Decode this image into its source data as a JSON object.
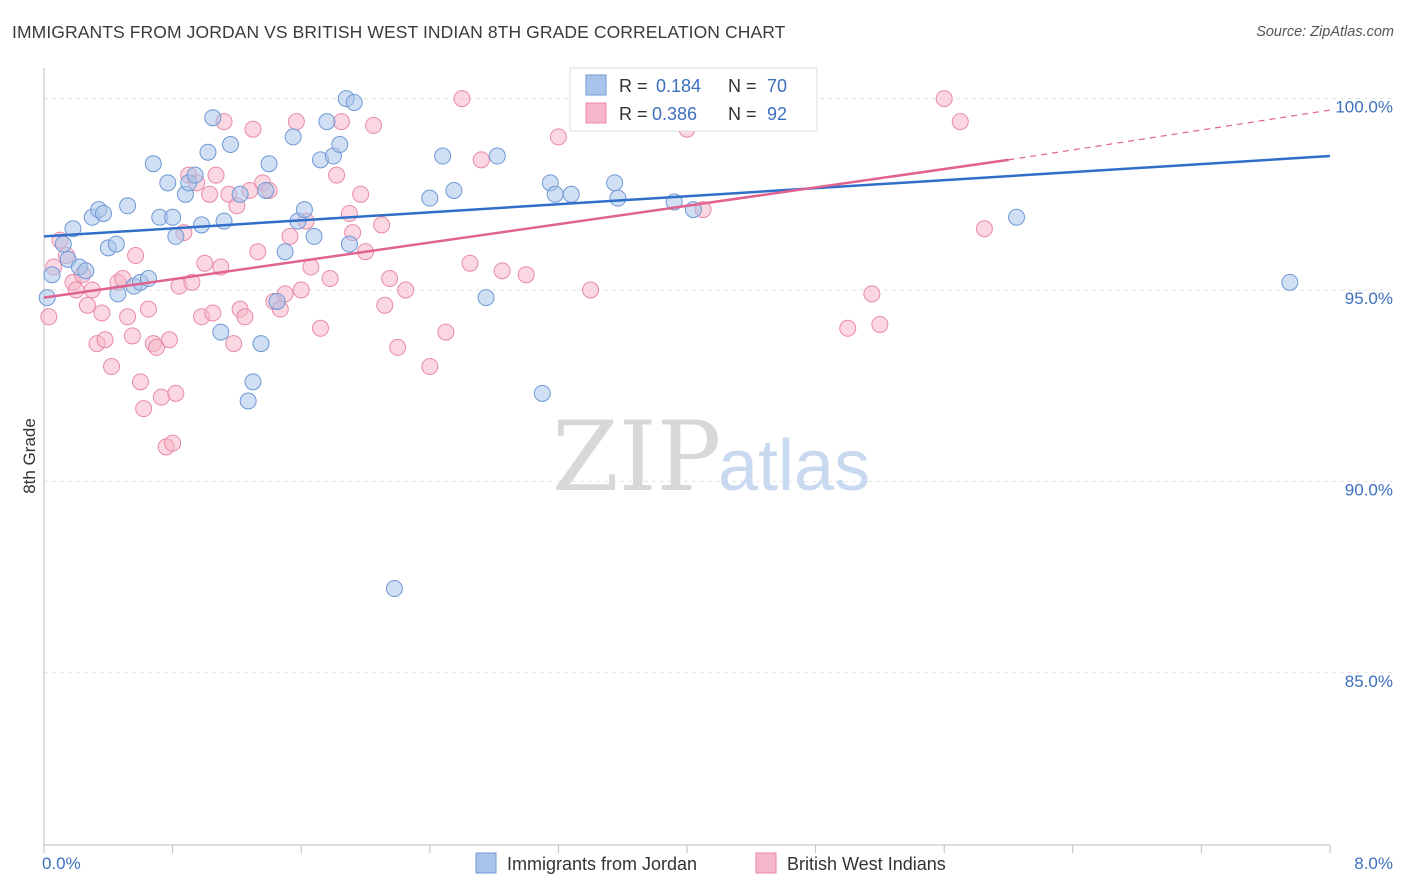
{
  "header": {
    "title": "IMMIGRANTS FROM JORDAN VS BRITISH WEST INDIAN 8TH GRADE CORRELATION CHART",
    "source": "Source: ZipAtlas.com"
  },
  "watermark": {
    "zip": "ZIP",
    "atlas": "atlas"
  },
  "legend": {
    "r_label": "R =",
    "n_label": "N =",
    "series1": {
      "r": "0.184",
      "n": "70"
    },
    "series2": {
      "r": "0.386",
      "n": "92"
    }
  },
  "bottom_legend": {
    "series1": "Immigrants from Jordan",
    "series2": "British West Indians"
  },
  "colors": {
    "series1_fill": "#a9c4ea",
    "series1_stroke": "#6f98d6",
    "series1_line": "#2f6fc9",
    "series2_fill": "#f5b6c9",
    "series2_stroke": "#e98aa8",
    "series2_line": "#e0628f",
    "grid": "#e3e3e3",
    "axis_text": "#3d6fbf"
  },
  "chart_data": {
    "type": "scatter",
    "title": "IMMIGRANTS FROM JORDAN VS BRITISH WEST INDIAN 8TH GRADE CORRELATION CHART",
    "xlabel": "",
    "ylabel": "8th Grade",
    "xlim": [
      0,
      8
    ],
    "ylim": [
      80.5,
      100.8
    ],
    "x_tick_labels": [
      "0.0%",
      "8.0%"
    ],
    "y_ticks": [
      85,
      90,
      95,
      100
    ],
    "y_tick_labels": [
      "85.0%",
      "90.0%",
      "95.0%",
      "100.0%"
    ],
    "grid": true,
    "legend_position": "top-center",
    "series": [
      {
        "name": "Immigrants from Jordan",
        "r": 0.184,
        "n": 70,
        "trend": {
          "x": [
            0,
            8
          ],
          "y": [
            96.4,
            98.5
          ]
        },
        "points": [
          [
            0.05,
            95.4
          ],
          [
            0.12,
            96.2
          ],
          [
            0.15,
            95.8
          ],
          [
            0.18,
            96.6
          ],
          [
            0.22,
            95.6
          ],
          [
            0.26,
            95.5
          ],
          [
            0.3,
            96.9
          ],
          [
            0.34,
            97.1
          ],
          [
            0.37,
            97.0
          ],
          [
            0.4,
            96.1
          ],
          [
            0.45,
            96.2
          ],
          [
            0.46,
            94.9
          ],
          [
            0.52,
            97.2
          ],
          [
            0.56,
            95.1
          ],
          [
            0.6,
            95.2
          ],
          [
            0.65,
            95.3
          ],
          [
            0.68,
            98.3
          ],
          [
            0.72,
            96.9
          ],
          [
            0.77,
            97.8
          ],
          [
            0.8,
            96.9
          ],
          [
            0.82,
            96.4
          ],
          [
            0.88,
            97.5
          ],
          [
            0.9,
            97.8
          ],
          [
            0.94,
            98.0
          ],
          [
            0.98,
            96.7
          ],
          [
            1.02,
            98.6
          ],
          [
            1.05,
            99.5
          ],
          [
            1.1,
            93.9
          ],
          [
            1.12,
            96.8
          ],
          [
            1.16,
            98.8
          ],
          [
            1.22,
            97.5
          ],
          [
            1.27,
            92.1
          ],
          [
            1.3,
            92.6
          ],
          [
            1.35,
            93.6
          ],
          [
            1.38,
            97.6
          ],
          [
            1.4,
            98.3
          ],
          [
            1.45,
            94.7
          ],
          [
            1.5,
            96.0
          ],
          [
            1.55,
            99.0
          ],
          [
            1.58,
            96.8
          ],
          [
            1.62,
            97.1
          ],
          [
            1.68,
            96.4
          ],
          [
            1.72,
            98.4
          ],
          [
            1.76,
            99.4
          ],
          [
            1.8,
            98.5
          ],
          [
            1.84,
            98.8
          ],
          [
            1.88,
            100.0
          ],
          [
            1.9,
            96.2
          ],
          [
            1.93,
            99.9
          ],
          [
            2.18,
            87.2
          ],
          [
            2.4,
            97.4
          ],
          [
            2.48,
            98.5
          ],
          [
            2.55,
            97.6
          ],
          [
            2.75,
            94.8
          ],
          [
            2.82,
            98.5
          ],
          [
            3.1,
            92.3
          ],
          [
            3.15,
            97.8
          ],
          [
            3.18,
            97.5
          ],
          [
            3.28,
            97.5
          ],
          [
            3.43,
            100.0
          ],
          [
            3.55,
            97.8
          ],
          [
            3.57,
            97.4
          ],
          [
            3.78,
            100.0
          ],
          [
            3.92,
            97.3
          ],
          [
            4.04,
            97.1
          ],
          [
            4.1,
            100.0
          ],
          [
            4.3,
            100.0
          ],
          [
            6.05,
            96.9
          ],
          [
            7.75,
            95.2
          ],
          [
            0.02,
            94.8
          ]
        ]
      },
      {
        "name": "British West Indians",
        "r": 0.386,
        "n": 92,
        "trend": {
          "x": [
            0,
            6
          ],
          "y": [
            94.8,
            98.4
          ]
        },
        "trend_extended": {
          "x": [
            6,
            8
          ],
          "y": [
            98.4,
            99.7
          ]
        },
        "points": [
          [
            0.03,
            94.3
          ],
          [
            0.06,
            95.6
          ],
          [
            0.1,
            96.3
          ],
          [
            0.14,
            95.9
          ],
          [
            0.18,
            95.2
          ],
          [
            0.2,
            95.0
          ],
          [
            0.24,
            95.4
          ],
          [
            0.27,
            94.6
          ],
          [
            0.3,
            95.0
          ],
          [
            0.33,
            93.6
          ],
          [
            0.36,
            94.4
          ],
          [
            0.38,
            93.7
          ],
          [
            0.42,
            93.0
          ],
          [
            0.46,
            95.2
          ],
          [
            0.49,
            95.3
          ],
          [
            0.52,
            94.3
          ],
          [
            0.55,
            93.8
          ],
          [
            0.57,
            95.9
          ],
          [
            0.6,
            92.6
          ],
          [
            0.62,
            91.9
          ],
          [
            0.65,
            94.5
          ],
          [
            0.68,
            93.6
          ],
          [
            0.7,
            93.5
          ],
          [
            0.73,
            92.2
          ],
          [
            0.76,
            90.9
          ],
          [
            0.78,
            93.7
          ],
          [
            0.8,
            91.0
          ],
          [
            0.82,
            92.3
          ],
          [
            0.84,
            95.1
          ],
          [
            0.87,
            96.5
          ],
          [
            0.9,
            98.0
          ],
          [
            0.92,
            95.2
          ],
          [
            0.95,
            97.8
          ],
          [
            0.98,
            94.3
          ],
          [
            1.0,
            95.7
          ],
          [
            1.03,
            97.5
          ],
          [
            1.05,
            94.4
          ],
          [
            1.07,
            98.0
          ],
          [
            1.1,
            95.6
          ],
          [
            1.12,
            99.4
          ],
          [
            1.15,
            97.5
          ],
          [
            1.18,
            93.6
          ],
          [
            1.2,
            97.2
          ],
          [
            1.22,
            94.5
          ],
          [
            1.25,
            94.3
          ],
          [
            1.28,
            97.6
          ],
          [
            1.3,
            99.2
          ],
          [
            1.33,
            96.0
          ],
          [
            1.36,
            97.8
          ],
          [
            1.4,
            97.6
          ],
          [
            1.43,
            94.7
          ],
          [
            1.47,
            94.5
          ],
          [
            1.5,
            94.9
          ],
          [
            1.53,
            96.4
          ],
          [
            1.57,
            99.4
          ],
          [
            1.6,
            95.0
          ],
          [
            1.63,
            96.8
          ],
          [
            1.66,
            95.6
          ],
          [
            1.72,
            94.0
          ],
          [
            1.78,
            95.3
          ],
          [
            1.82,
            98.0
          ],
          [
            1.85,
            99.4
          ],
          [
            1.9,
            97.0
          ],
          [
            1.92,
            96.5
          ],
          [
            1.97,
            97.5
          ],
          [
            2.0,
            96.0
          ],
          [
            2.05,
            99.3
          ],
          [
            2.1,
            96.7
          ],
          [
            2.12,
            94.6
          ],
          [
            2.15,
            95.3
          ],
          [
            2.2,
            93.5
          ],
          [
            2.25,
            95.0
          ],
          [
            2.4,
            93.0
          ],
          [
            2.5,
            93.9
          ],
          [
            2.6,
            100.0
          ],
          [
            2.65,
            95.7
          ],
          [
            2.72,
            98.4
          ],
          [
            2.85,
            95.5
          ],
          [
            3.0,
            95.4
          ],
          [
            3.2,
            99.0
          ],
          [
            3.4,
            95.0
          ],
          [
            3.6,
            100.0
          ],
          [
            3.85,
            99.5
          ],
          [
            4.0,
            99.2
          ],
          [
            4.1,
            97.1
          ],
          [
            4.45,
            100.0
          ],
          [
            5.0,
            94.0
          ],
          [
            5.15,
            94.9
          ],
          [
            5.2,
            94.1
          ],
          [
            5.6,
            100.0
          ],
          [
            5.7,
            99.4
          ],
          [
            5.85,
            96.6
          ]
        ]
      }
    ]
  }
}
